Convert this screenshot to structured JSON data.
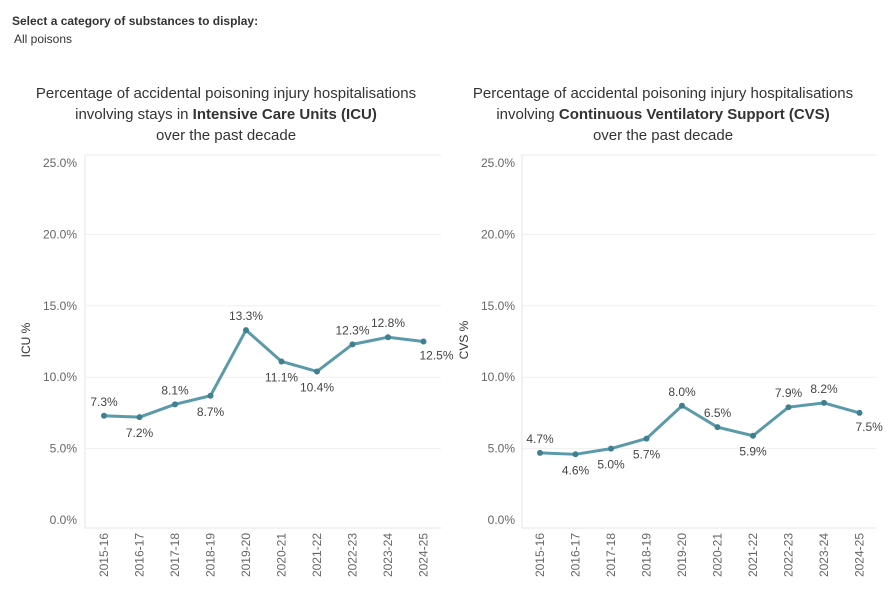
{
  "filter": {
    "label": "Select a category of substances to display:",
    "value": "All poisons"
  },
  "chart_data": [
    {
      "type": "line",
      "title_lines": [
        [
          "Percentage of accidental poisoning injury hospitalisations"
        ],
        [
          "involving stays in ",
          "Intensive Care Units (ICU)"
        ],
        [
          "over the past decade"
        ]
      ],
      "ylabel": "ICU %",
      "xlabel": "",
      "ylim": [
        0,
        25
      ],
      "yticks": [
        "25.0%",
        "20.0%",
        "15.0%",
        "10.0%",
        "5.0%",
        "0.0%"
      ],
      "categories": [
        "2015-16",
        "2016-17",
        "2017-18",
        "2018-19",
        "2019-20",
        "2020-21",
        "2021-22",
        "2022-23",
        "2023-24",
        "2024-25"
      ],
      "values": [
        7.3,
        7.2,
        8.1,
        8.7,
        13.3,
        11.1,
        10.4,
        12.3,
        12.8,
        12.5
      ],
      "data_labels": [
        "7.3%",
        "7.2%",
        "8.1%",
        "8.7%",
        "13.3%",
        "11.1%",
        "10.4%",
        "12.3%",
        "12.8%",
        "12.5%"
      ],
      "label_positions": [
        "above",
        "below",
        "above",
        "below",
        "above",
        "below",
        "below",
        "above",
        "above",
        "below-right"
      ],
      "line_color": "#5b9aa9"
    },
    {
      "type": "line",
      "title_lines": [
        [
          "Percentage of accidental poisoning injury hospitalisations"
        ],
        [
          "involving ",
          "Continuous Ventilatory Support (CVS)"
        ],
        [
          "over the past decade"
        ]
      ],
      "ylabel": "CVS %",
      "xlabel": "",
      "ylim": [
        0,
        25
      ],
      "yticks": [
        "25.0%",
        "20.0%",
        "15.0%",
        "10.0%",
        "5.0%",
        "0.0%"
      ],
      "categories": [
        "2015-16",
        "2016-17",
        "2017-18",
        "2018-19",
        "2019-20",
        "2020-21",
        "2021-22",
        "2022-23",
        "2023-24",
        "2024-25"
      ],
      "values": [
        4.7,
        4.6,
        5.0,
        5.7,
        8.0,
        6.5,
        5.9,
        7.9,
        8.2,
        7.5
      ],
      "data_labels": [
        "4.7%",
        "4.6%",
        "5.0%",
        "5.7%",
        "8.0%",
        "6.5%",
        "5.9%",
        "7.9%",
        "8.2%",
        "7.5%"
      ],
      "label_positions": [
        "above",
        "below",
        "below",
        "below",
        "above",
        "above",
        "below",
        "above",
        "above",
        "below-right"
      ],
      "line_color": "#5b9aa9"
    }
  ]
}
